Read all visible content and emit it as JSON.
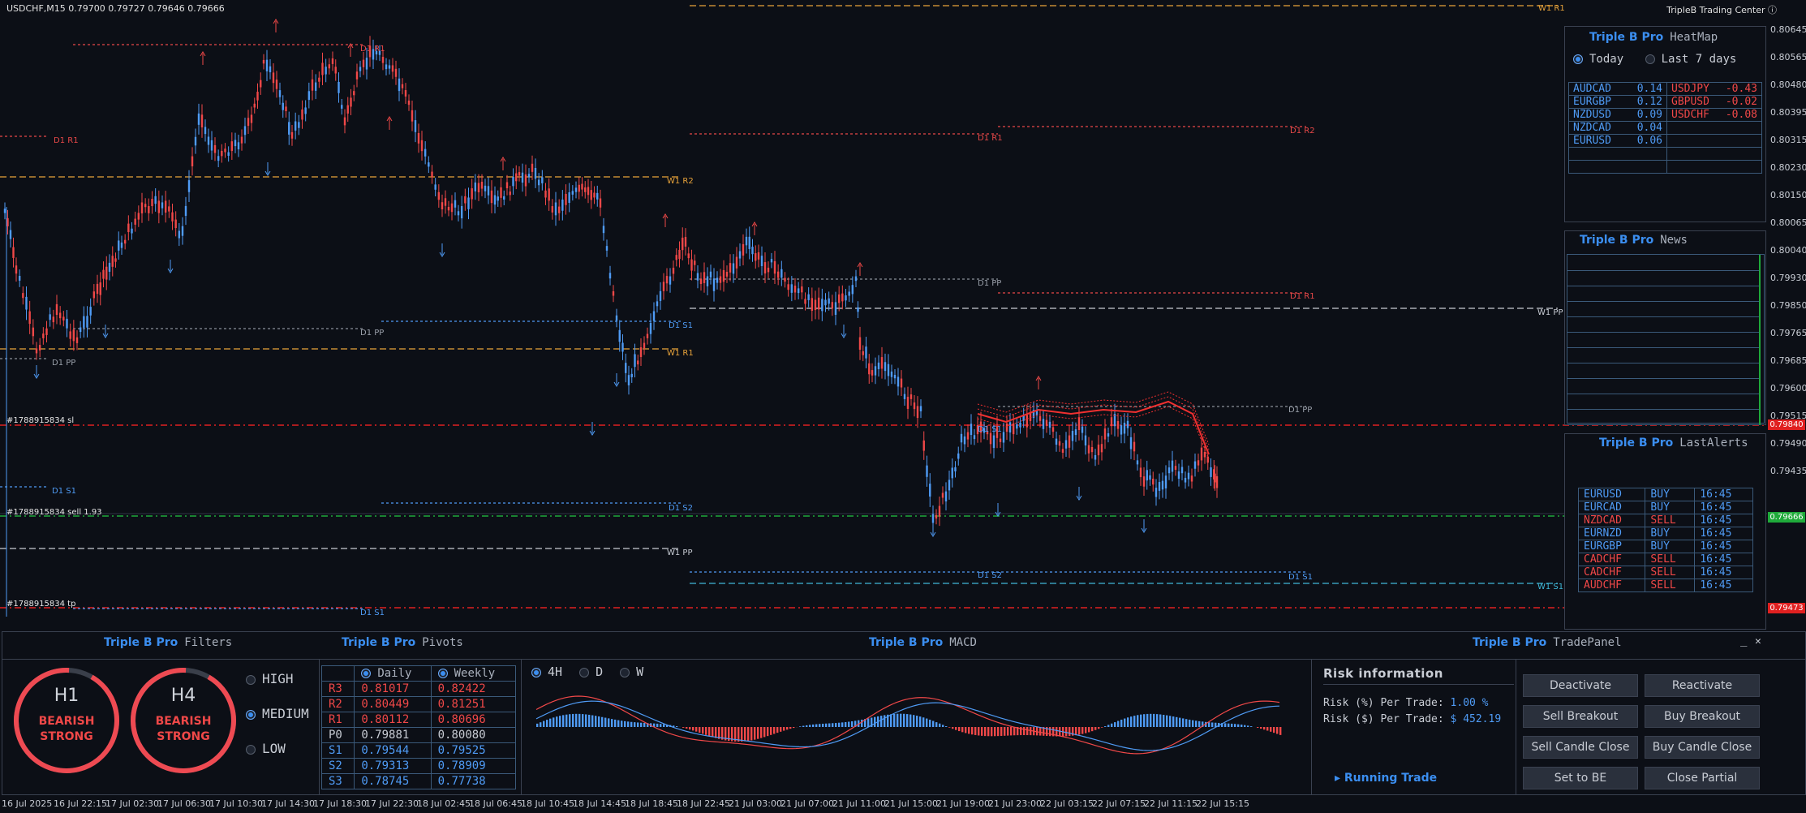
{
  "chart": {
    "symbol_header": "USDCHF,M15  0.79700 0.79727 0.79646 0.79666",
    "brand_header": "TripleB Trading Center ⓘ",
    "price_labels": [
      "0.80645",
      "0.80565",
      "0.80480",
      "0.80395",
      "0.80315",
      "0.80230",
      "0.80150",
      "0.80065",
      "0.80040",
      "0.79930",
      "0.79850",
      "0.79765",
      "0.79685",
      "0.79600",
      "0.79515",
      "0.79490",
      "0.79435"
    ],
    "price_tags": {
      "sl": "0.79840",
      "current": "0.79666",
      "tp": "0.79473"
    },
    "time_labels": [
      "16 Jul 2025",
      "16 Jul 22:15",
      "17 Jul 02:30",
      "17 Jul 06:30",
      "17 Jul 10:30",
      "17 Jul 14:30",
      "17 Jul 18:30",
      "17 Jul 22:30",
      "18 Jul 02:45",
      "18 Jul 06:45",
      "18 Jul 10:45",
      "18 Jul 14:45",
      "18 Jul 18:45",
      "18 Jul 22:45",
      "21 Jul 03:00",
      "21 Jul 07:00",
      "21 Jul 11:00",
      "21 Jul 15:00",
      "21 Jul 19:00",
      "21 Jul 23:00",
      "22 Jul 03:15",
      "22 Jul 07:15",
      "22 Jul 11:15",
      "22 Jul 15:15"
    ],
    "levels": {
      "w1_r1": "W1 R1",
      "d1_r1": "D1 R1",
      "d1_r2": "D1 R2",
      "w1_r2": "W1 R2",
      "d1_pp": "D1 PP",
      "w1_pp": "W1 PP",
      "d1_s1": "D1 S1",
      "w1_s1": "W1 S1",
      "d1_s2": "D1 S2"
    },
    "orders": {
      "sl": "#1788915834 sl",
      "entry": "#1788915834 sell 1.93",
      "tp": "#1788915834 tp"
    }
  },
  "heatmap": {
    "brand": "Triple B Pro",
    "name": "HeatMap",
    "options": [
      "Today",
      "Last 7 days"
    ],
    "positive": [
      [
        "AUDCAD",
        "0.14"
      ],
      [
        "EURGBP",
        "0.12"
      ],
      [
        "NZDUSD",
        "0.09"
      ],
      [
        "NZDCAD",
        "0.04"
      ],
      [
        "EURUSD",
        "0.06"
      ]
    ],
    "negative": [
      [
        "USDJPY",
        "-0.43"
      ],
      [
        "GBPUSD",
        "-0.02"
      ],
      [
        "USDCHF",
        "-0.08"
      ]
    ]
  },
  "news": {
    "brand": "Triple B Pro",
    "name": "News"
  },
  "alerts": {
    "brand": "Triple B Pro",
    "name": "LastAlerts",
    "rows": [
      {
        "pair": "EURUSD",
        "side": "BUY",
        "time": "16:45"
      },
      {
        "pair": "EURCAD",
        "side": "BUY",
        "time": "16:45"
      },
      {
        "pair": "NZDCAD",
        "side": "SELL",
        "time": "16:45"
      },
      {
        "pair": "EURNZD",
        "side": "BUY",
        "time": "16:45"
      },
      {
        "pair": "EURGBP",
        "side": "BUY",
        "time": "16:45"
      },
      {
        "pair": "CADCHF",
        "side": "SELL",
        "time": "16:45"
      },
      {
        "pair": "CADCHF",
        "side": "SELL",
        "time": "16:45"
      },
      {
        "pair": "AUDCHF",
        "side": "SELL",
        "time": "16:45"
      }
    ]
  },
  "filters": {
    "brand": "Triple B Pro",
    "name": "Filters",
    "gauges": [
      {
        "tf": "H1",
        "state1": "BEARISH",
        "state2": "STRONG"
      },
      {
        "tf": "H4",
        "state1": "BEARISH",
        "state2": "STRONG"
      }
    ],
    "levels": [
      "HIGH",
      "MEDIUM",
      "LOW"
    ],
    "selected_level": "MEDIUM"
  },
  "pivots": {
    "brand": "Triple B Pro",
    "name": "Pivots",
    "headers": [
      "Daily",
      "Weekly"
    ],
    "rows": [
      {
        "label": "R3",
        "daily": "0.81017",
        "weekly": "0.82422",
        "kind": "r"
      },
      {
        "label": "R2",
        "daily": "0.80449",
        "weekly": "0.81251",
        "kind": "r"
      },
      {
        "label": "R1",
        "daily": "0.80112",
        "weekly": "0.80696",
        "kind": "r"
      },
      {
        "label": "P0",
        "daily": "0.79881",
        "weekly": "0.80080",
        "kind": "p"
      },
      {
        "label": "S1",
        "daily": "0.79544",
        "weekly": "0.79525",
        "kind": "s"
      },
      {
        "label": "S2",
        "daily": "0.79313",
        "weekly": "0.78909",
        "kind": "s"
      },
      {
        "label": "S3",
        "daily": "0.78745",
        "weekly": "0.77738",
        "kind": "s"
      }
    ]
  },
  "macd": {
    "brand": "Triple B Pro",
    "name": "MACD",
    "timeframes": [
      "4H",
      "D",
      "W"
    ]
  },
  "trade": {
    "brand": "Triple B Pro",
    "name": "TradePanel",
    "risk_title": "Risk information",
    "risk_pct_label": "Risk (%) Per Trade:",
    "risk_pct_value": "1.00 %",
    "risk_usd_label": "Risk ($) Per Trade:",
    "risk_usd_value": "$ 452.19",
    "running": "Running Trade",
    "buttons": [
      "Deactivate",
      "Reactivate",
      "Sell Breakout",
      "Buy Breakout",
      "Sell Candle Close",
      "Buy Candle Close",
      "Set to BE",
      "Close Partial"
    ],
    "min_icon": "_",
    "close_icon": "✕"
  },
  "colors": {
    "accent": "#3b8ef0",
    "bull": "#4f9bf5",
    "bear": "#f04848",
    "bg": "#0c0f16"
  }
}
